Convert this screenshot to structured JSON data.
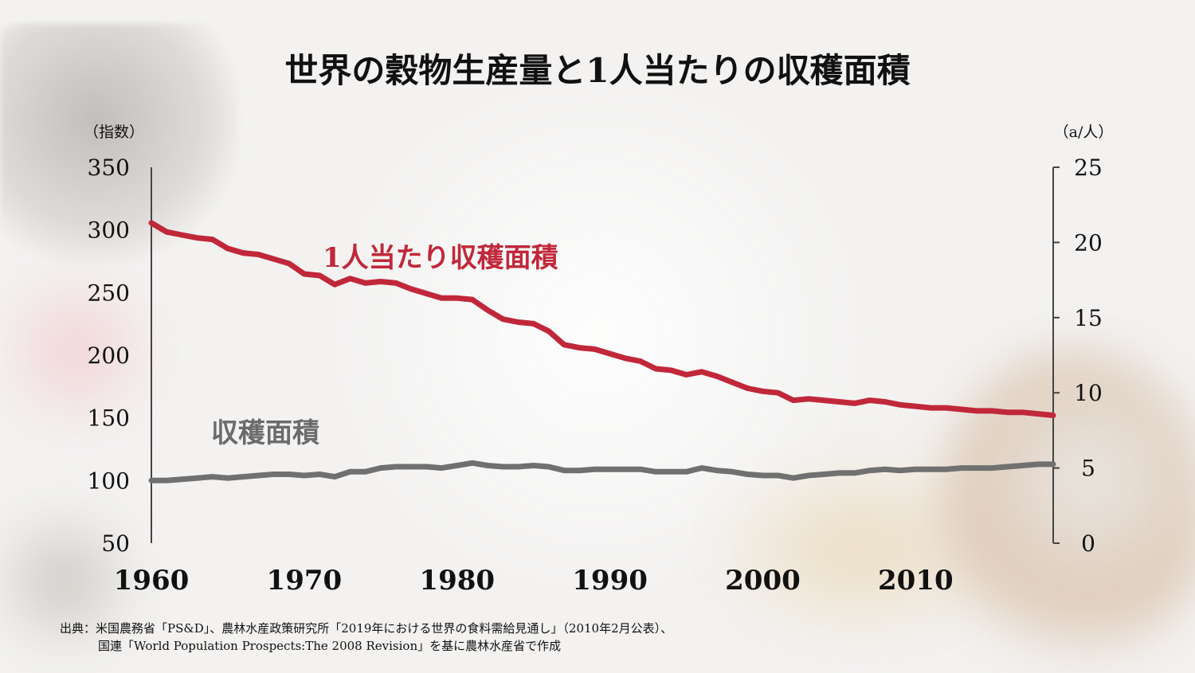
{
  "chart_data": {
    "type": "line",
    "title": "世界の穀物生産量と1人当たりの収穫面積",
    "ylabel_left": "（指数）",
    "ylabel_right": "（a/人）",
    "ylim_left": [
      50,
      350
    ],
    "ylim_right": [
      0,
      25
    ],
    "yticks_left": [
      "50",
      "100",
      "150",
      "200",
      "250",
      "300",
      "350"
    ],
    "yticks_right": [
      "0",
      "5",
      "10",
      "15",
      "20",
      "25"
    ],
    "xlim": [
      1960,
      2019
    ],
    "xticks": [
      "1960",
      "1970",
      "1980",
      "1990",
      "2000",
      "2010"
    ],
    "series": [
      {
        "name": "1人当たり収穫面積",
        "axis": "right",
        "color": "#c0283a",
        "x": [
          1960,
          1961,
          1962,
          1963,
          1964,
          1965,
          1966,
          1967,
          1968,
          1969,
          1970,
          1971,
          1972,
          1973,
          1974,
          1975,
          1976,
          1977,
          1978,
          1979,
          1980,
          1981,
          1982,
          1983,
          1984,
          1985,
          1986,
          1987,
          1988,
          1989,
          1990,
          1991,
          1992,
          1993,
          1994,
          1995,
          1996,
          1997,
          1998,
          1999,
          2000,
          2001,
          2002,
          2003,
          2004,
          2005,
          2006,
          2007,
          2008,
          2009,
          2010,
          2011,
          2012,
          2013,
          2014,
          2015,
          2016,
          2017,
          2018,
          2019
        ],
        "values": [
          21.3,
          20.7,
          20.5,
          20.3,
          20.2,
          19.6,
          19.3,
          19.2,
          18.9,
          18.6,
          17.9,
          17.8,
          17.2,
          17.6,
          17.3,
          17.4,
          17.3,
          16.9,
          16.6,
          16.3,
          16.3,
          16.2,
          15.5,
          14.9,
          14.7,
          14.6,
          14.1,
          13.2,
          13.0,
          12.9,
          12.6,
          12.3,
          12.1,
          11.6,
          11.5,
          11.2,
          11.4,
          11.1,
          10.7,
          10.3,
          10.1,
          10.0,
          9.5,
          9.6,
          9.5,
          9.4,
          9.3,
          9.5,
          9.4,
          9.2,
          9.1,
          9.0,
          9.0,
          8.9,
          8.8,
          8.8,
          8.7,
          8.7,
          8.6,
          8.5
        ]
      },
      {
        "name": "収穫面積",
        "axis": "left",
        "color": "#707070",
        "x": [
          1960,
          1961,
          1962,
          1963,
          1964,
          1965,
          1966,
          1967,
          1968,
          1969,
          1970,
          1971,
          1972,
          1973,
          1974,
          1975,
          1976,
          1977,
          1978,
          1979,
          1980,
          1981,
          1982,
          1983,
          1984,
          1985,
          1986,
          1987,
          1988,
          1989,
          1990,
          1991,
          1992,
          1993,
          1994,
          1995,
          1996,
          1997,
          1998,
          1999,
          2000,
          2001,
          2002,
          2003,
          2004,
          2005,
          2006,
          2007,
          2008,
          2009,
          2010,
          2011,
          2012,
          2013,
          2014,
          2015,
          2016,
          2017,
          2018,
          2019
        ],
        "values": [
          100,
          100,
          101,
          102,
          103,
          102,
          103,
          104,
          105,
          105,
          104,
          105,
          103,
          107,
          107,
          110,
          111,
          111,
          111,
          110,
          112,
          114,
          112,
          111,
          111,
          112,
          111,
          108,
          108,
          109,
          109,
          109,
          109,
          107,
          107,
          107,
          110,
          108,
          107,
          105,
          104,
          104,
          102,
          104,
          105,
          106,
          106,
          108,
          109,
          108,
          109,
          109,
          109,
          110,
          110,
          110,
          111,
          112,
          113,
          113
        ]
      }
    ],
    "annotations": {
      "red_label": "1人当たり収穫面積",
      "gray_label": "収穫面積"
    },
    "source_line1": "出典：米国農務省「PS&D」、農林水産政策研究所「2019年における世界の食料需給見通し」（2010年2月公表）、",
    "source_line2": "国連「World Population Prospects:The 2008 Revision」を基に農林水産省で作成"
  }
}
